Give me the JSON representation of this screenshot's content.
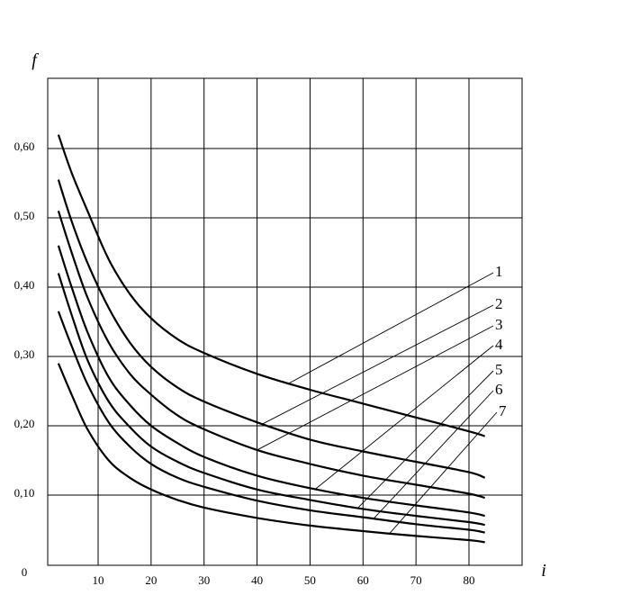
{
  "chart_data": {
    "type": "line",
    "xlabel": "i",
    "ylabel": "f",
    "origin_label": "0",
    "xlim": [
      0,
      85
    ],
    "ylim": [
      -0.02,
      0.7
    ],
    "xticks": [
      10,
      20,
      30,
      40,
      50,
      60,
      70,
      80
    ],
    "yticks": [
      {
        "value": 0.1,
        "label": "0,10"
      },
      {
        "value": 0.2,
        "label": "0,20"
      },
      {
        "value": 0.3,
        "label": "0,30"
      },
      {
        "value": 0.4,
        "label": "0,40"
      },
      {
        "value": 0.5,
        "label": "0,50"
      },
      {
        "value": 0.6,
        "label": "0,60"
      }
    ],
    "vertical_grid": [
      10,
      20,
      30,
      40,
      50,
      60,
      70,
      80
    ],
    "grid": true,
    "series": [
      {
        "label": "1",
        "x": [
          2.5,
          5,
          8,
          12,
          16,
          20,
          25,
          30,
          40,
          50,
          60,
          70,
          80,
          83
        ],
        "y": [
          0.62,
          0.565,
          0.51,
          0.44,
          0.39,
          0.355,
          0.325,
          0.305,
          0.275,
          0.252,
          0.232,
          0.212,
          0.192,
          0.185
        ],
        "leader": {
          "from_x": 46,
          "to_x": 76
        }
      },
      {
        "label": "2",
        "x": [
          2.5,
          5,
          8,
          12,
          16,
          20,
          25,
          30,
          40,
          50,
          60,
          70,
          80,
          83
        ],
        "y": [
          0.555,
          0.495,
          0.435,
          0.37,
          0.32,
          0.285,
          0.255,
          0.235,
          0.205,
          0.18,
          0.163,
          0.148,
          0.133,
          0.125
        ],
        "leader": {
          "from_x": 41,
          "to_x": 77
        }
      },
      {
        "label": "3",
        "x": [
          2.5,
          5,
          8,
          12,
          16,
          20,
          25,
          30,
          40,
          50,
          60,
          70,
          80,
          83
        ],
        "y": [
          0.51,
          0.45,
          0.385,
          0.32,
          0.275,
          0.245,
          0.215,
          0.195,
          0.165,
          0.145,
          0.128,
          0.115,
          0.102,
          0.096
        ],
        "leader": {
          "from_x": 40,
          "to_x": 77
        }
      },
      {
        "label": "4",
        "x": [
          2.5,
          5,
          8,
          12,
          16,
          20,
          25,
          30,
          40,
          50,
          60,
          70,
          80,
          83
        ],
        "y": [
          0.46,
          0.4,
          0.335,
          0.27,
          0.23,
          0.2,
          0.175,
          0.155,
          0.128,
          0.11,
          0.096,
          0.085,
          0.075,
          0.07
        ],
        "leader": {
          "from_x": 51,
          "to_x": 77
        }
      },
      {
        "label": "5",
        "x": [
          2.5,
          5,
          8,
          12,
          16,
          20,
          25,
          30,
          40,
          50,
          60,
          70,
          80,
          83
        ],
        "y": [
          0.42,
          0.36,
          0.295,
          0.235,
          0.198,
          0.17,
          0.148,
          0.132,
          0.108,
          0.093,
          0.08,
          0.07,
          0.061,
          0.057
        ],
        "leader": {
          "from_x": 59,
          "to_x": 77
        }
      },
      {
        "label": "6",
        "x": [
          2.5,
          5,
          8,
          12,
          16,
          20,
          25,
          30,
          40,
          50,
          60,
          70,
          80,
          83
        ],
        "y": [
          0.365,
          0.315,
          0.26,
          0.205,
          0.17,
          0.145,
          0.125,
          0.112,
          0.092,
          0.078,
          0.068,
          0.058,
          0.05,
          0.046
        ],
        "leader": {
          "from_x": 62,
          "to_x": 77
        }
      },
      {
        "label": "7",
        "x": [
          2.5,
          5,
          8,
          12,
          16,
          20,
          25,
          30,
          40,
          50,
          60,
          70,
          80,
          83
        ],
        "y": [
          0.29,
          0.245,
          0.195,
          0.15,
          0.125,
          0.108,
          0.093,
          0.082,
          0.067,
          0.056,
          0.048,
          0.041,
          0.035,
          0.032
        ],
        "leader": {
          "from_x": 65,
          "to_x": 78
        }
      }
    ]
  }
}
